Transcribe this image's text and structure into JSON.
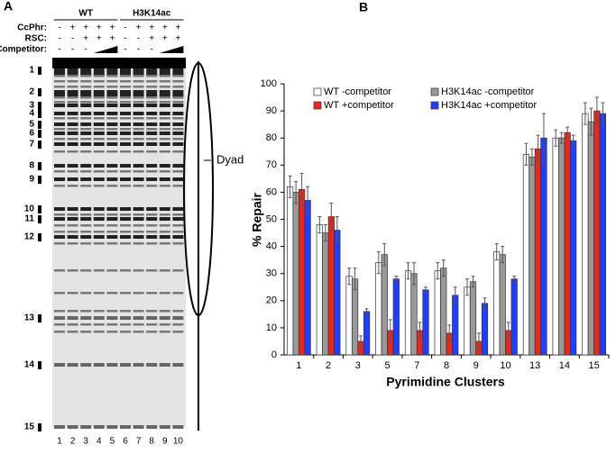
{
  "gel": {
    "panel_label": "A",
    "groups": [
      "WT",
      "H3K14ac"
    ],
    "row_labels": [
      "CcPhr:",
      "RSC:",
      "Competitor:"
    ],
    "rows": [
      [
        "-",
        "+",
        "+",
        "+",
        "+",
        "-",
        "+",
        "+",
        "+",
        "+"
      ],
      [
        "-",
        "-",
        "+",
        "+",
        "+",
        "-",
        "-",
        "+",
        "+",
        "+"
      ],
      [
        "-",
        "-",
        "-",
        null,
        null,
        "-",
        "-",
        "-",
        null,
        null
      ]
    ],
    "band_labels": [
      "1",
      "2",
      "3",
      "4",
      "5",
      "6",
      "7",
      "8",
      "9",
      "10",
      "11",
      "12",
      "13",
      "14",
      "15"
    ],
    "lane_numbers": [
      "1",
      "2",
      "3",
      "4",
      "5",
      "6",
      "7",
      "8",
      "9",
      "10"
    ],
    "dyad": "Dyad"
  },
  "chart_data": {
    "type": "bar",
    "panel_label": "B",
    "x_label": "Pyrimidine Clusters",
    "y_label": "% Repair",
    "categories": [
      "1",
      "2",
      "3",
      "5",
      "7",
      "8",
      "9",
      "10",
      "13",
      "14",
      "15"
    ],
    "series": [
      {
        "name": "WT -competitor",
        "color": "#ffffff",
        "values": [
          62,
          48,
          29,
          34,
          31,
          31,
          25,
          38,
          74,
          80,
          89
        ],
        "errors": [
          4,
          3,
          3,
          4,
          3,
          3,
          3,
          3,
          4,
          3,
          4
        ]
      },
      {
        "name": "H3K14ac -competitor",
        "color": "#999999",
        "values": [
          60,
          45,
          28,
          37,
          30,
          32,
          27,
          37,
          73,
          80,
          86
        ],
        "errors": [
          4,
          3,
          4,
          4,
          4,
          3,
          2,
          3,
          3,
          2,
          5
        ]
      },
      {
        "name": "WT +competitor",
        "color": "#e8281e",
        "values": [
          61,
          51,
          5,
          9,
          9,
          8,
          5,
          9,
          76,
          82,
          90
        ],
        "errors": [
          6,
          5,
          2,
          4,
          3,
          3,
          3,
          3,
          5,
          2,
          5
        ]
      },
      {
        "name": "H3K14ac +competitor",
        "color": "#1f3fff",
        "values": [
          57,
          46,
          16,
          28,
          24,
          22,
          19,
          28,
          80,
          79,
          89
        ],
        "errors": [
          5,
          5,
          1,
          1,
          1,
          3,
          2,
          1,
          9,
          2,
          4
        ]
      }
    ],
    "ylim": [
      0,
      100
    ],
    "yticks": [
      0,
      10,
      20,
      30,
      40,
      50,
      60,
      70,
      80,
      90,
      100
    ],
    "grid": false,
    "legend": "upper left"
  }
}
